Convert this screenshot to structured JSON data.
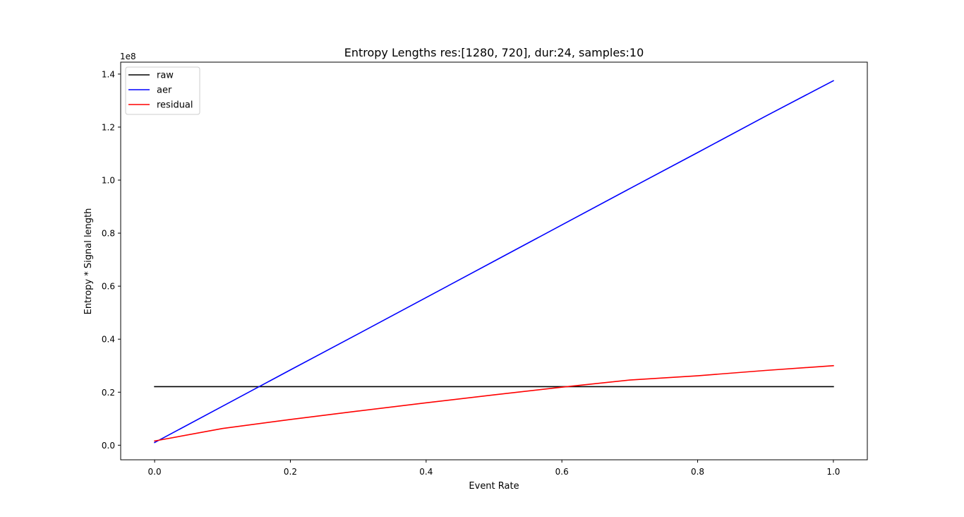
{
  "chart_data": {
    "type": "line",
    "title": "Entropy Lengths res:[1280, 720], dur:24, samples:10",
    "xlabel": "Event Rate",
    "ylabel": "Entropy * Signal length",
    "y_offset_label": "1e8",
    "xlim": [
      -0.05,
      1.05
    ],
    "ylim": [
      -5500000,
      144500000
    ],
    "x_ticks": [
      0.0,
      0.2,
      0.4,
      0.6,
      0.8,
      1.0
    ],
    "x_tick_labels": [
      "0.0",
      "0.2",
      "0.4",
      "0.6",
      "0.8",
      "1.0"
    ],
    "y_ticks": [
      0,
      20000000,
      40000000,
      60000000,
      80000000,
      100000000,
      120000000,
      140000000
    ],
    "y_tick_labels": [
      "0.0",
      "0.2",
      "0.4",
      "0.6",
      "0.8",
      "1.0",
      "1.2",
      "1.4"
    ],
    "grid": false,
    "legend_position": "top-left",
    "x": [
      0.0,
      0.1,
      0.2,
      0.3,
      0.4,
      0.5,
      0.6,
      0.7,
      0.8,
      0.9,
      1.0
    ],
    "series": [
      {
        "name": "raw",
        "color": "#000000",
        "values": [
          22100000,
          22100000,
          22100000,
          22100000,
          22100000,
          22100000,
          22100000,
          22100000,
          22100000,
          22100000,
          22100000
        ]
      },
      {
        "name": "aer",
        "color": "#0000ff",
        "values": [
          1000000,
          14700000,
          28400000,
          42000000,
          55700000,
          69400000,
          83100000,
          96800000,
          110400000,
          124100000,
          137500000
        ]
      },
      {
        "name": "residual",
        "color": "#ff0000",
        "values": [
          1600000,
          6300000,
          9700000,
          12900000,
          16000000,
          19000000,
          21900000,
          24600000,
          26200000,
          28200000,
          30000000
        ]
      }
    ]
  }
}
